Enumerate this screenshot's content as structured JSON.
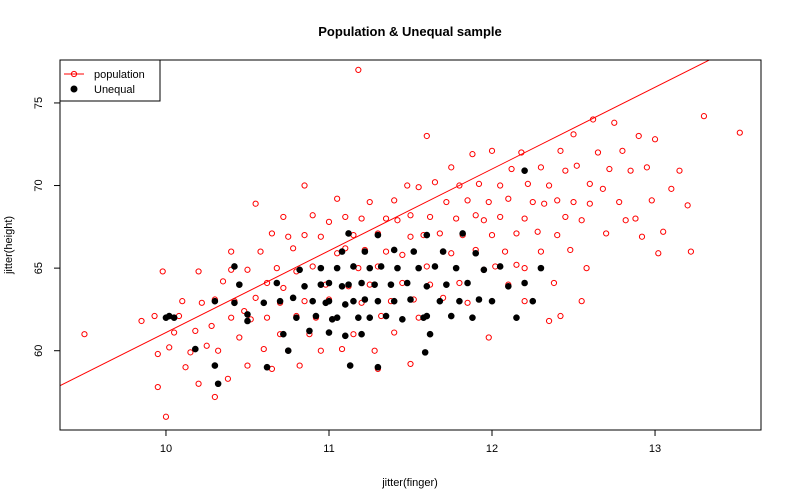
{
  "chart_data": {
    "type": "scatter",
    "title": "Population & Unequal sample",
    "xlabel": "jitter(finger)",
    "ylabel": "jitter(height)",
    "xlim": [
      9.35,
      13.65
    ],
    "ylim": [
      55.2,
      77.6
    ],
    "x_ticks": [
      10,
      11,
      12,
      13
    ],
    "y_ticks": [
      60,
      65,
      70,
      75
    ],
    "legend_position": "top-left",
    "colors": {
      "population": "#ff0000",
      "sample": "#000000",
      "regression": "#ff0000"
    },
    "series": [
      {
        "name": "population",
        "marker": "open-circle",
        "points": [
          [
            9.5,
            61
          ],
          [
            9.85,
            61.8
          ],
          [
            9.93,
            62.1
          ],
          [
            9.95,
            57.8
          ],
          [
            9.95,
            59.8
          ],
          [
            9.98,
            64.8
          ],
          [
            10.0,
            56
          ],
          [
            10.02,
            60.2
          ],
          [
            10.05,
            61.1
          ],
          [
            10.08,
            62.1
          ],
          [
            10.1,
            63
          ],
          [
            10.12,
            59
          ],
          [
            10.15,
            59.9
          ],
          [
            10.18,
            61.2
          ],
          [
            10.2,
            64.8
          ],
          [
            10.2,
            58
          ],
          [
            10.22,
            62.9
          ],
          [
            10.25,
            60.3
          ],
          [
            10.28,
            61.5
          ],
          [
            10.3,
            57.2
          ],
          [
            10.3,
            63.1
          ],
          [
            10.32,
            60
          ],
          [
            10.35,
            64.2
          ],
          [
            10.38,
            58.3
          ],
          [
            10.4,
            66
          ],
          [
            10.4,
            62
          ],
          [
            10.42,
            63
          ],
          [
            10.45,
            60.8
          ],
          [
            10.48,
            62.4
          ],
          [
            10.5,
            64.9
          ],
          [
            10.5,
            59.1
          ],
          [
            10.52,
            61.9
          ],
          [
            10.55,
            68.9
          ],
          [
            10.55,
            63.2
          ],
          [
            10.58,
            66
          ],
          [
            10.6,
            60.1
          ],
          [
            10.62,
            64.1
          ],
          [
            10.62,
            62
          ],
          [
            10.65,
            67.1
          ],
          [
            10.65,
            58.9
          ],
          [
            10.68,
            65
          ],
          [
            10.7,
            62.9
          ],
          [
            10.7,
            61
          ],
          [
            10.72,
            68.1
          ],
          [
            10.72,
            63.8
          ],
          [
            10.75,
            60
          ],
          [
            10.78,
            66.2
          ],
          [
            10.8,
            64.8
          ],
          [
            10.8,
            62.1
          ],
          [
            10.82,
            59.1
          ],
          [
            10.85,
            67
          ],
          [
            10.85,
            63
          ],
          [
            10.88,
            61
          ],
          [
            10.9,
            68.2
          ],
          [
            10.9,
            65.1
          ],
          [
            10.92,
            62
          ],
          [
            10.95,
            66.9
          ],
          [
            10.95,
            60
          ],
          [
            10.98,
            64
          ],
          [
            11.0,
            67.8
          ],
          [
            11.0,
            63.1
          ],
          [
            11.02,
            61.9
          ],
          [
            11.05,
            69.2
          ],
          [
            11.05,
            65.9
          ],
          [
            11.08,
            60.1
          ],
          [
            11.1,
            68.1
          ],
          [
            11.1,
            66.2
          ],
          [
            11.12,
            63.9
          ],
          [
            11.15,
            67
          ],
          [
            11.15,
            61
          ],
          [
            11.18,
            77
          ],
          [
            11.18,
            65
          ],
          [
            11.2,
            68
          ],
          [
            11.2,
            62.9
          ],
          [
            11.22,
            66.1
          ],
          [
            11.25,
            69
          ],
          [
            11.25,
            64
          ],
          [
            11.28,
            60
          ],
          [
            11.3,
            67.1
          ],
          [
            11.3,
            65.1
          ],
          [
            11.32,
            62.1
          ],
          [
            11.35,
            68
          ],
          [
            11.35,
            66
          ],
          [
            11.38,
            63
          ],
          [
            11.4,
            69.1
          ],
          [
            11.4,
            61.1
          ],
          [
            11.42,
            67.9
          ],
          [
            11.45,
            65.8
          ],
          [
            11.45,
            64.1
          ],
          [
            11.48,
            70
          ],
          [
            11.5,
            68.2
          ],
          [
            11.5,
            66.9
          ],
          [
            11.52,
            63.1
          ],
          [
            11.55,
            69.9
          ],
          [
            11.55,
            62
          ],
          [
            11.58,
            67
          ],
          [
            11.6,
            73
          ],
          [
            11.6,
            65.1
          ],
          [
            11.62,
            68.1
          ],
          [
            11.62,
            64
          ],
          [
            11.65,
            70.2
          ],
          [
            11.68,
            67.1
          ],
          [
            11.7,
            66
          ],
          [
            11.7,
            63.2
          ],
          [
            11.72,
            69
          ],
          [
            11.75,
            71.1
          ],
          [
            11.75,
            65.9
          ],
          [
            11.78,
            68
          ],
          [
            11.8,
            70
          ],
          [
            11.8,
            64.1
          ],
          [
            11.82,
            67
          ],
          [
            11.85,
            69.1
          ],
          [
            11.85,
            62.9
          ],
          [
            11.88,
            71.9
          ],
          [
            11.9,
            68.2
          ],
          [
            11.9,
            66.1
          ],
          [
            11.92,
            70.1
          ],
          [
            11.95,
            67.9
          ],
          [
            11.95,
            64.9
          ],
          [
            11.98,
            69
          ],
          [
            12.0,
            72.1
          ],
          [
            12.0,
            67
          ],
          [
            12.02,
            65.1
          ],
          [
            12.05,
            70
          ],
          [
            12.05,
            68.1
          ],
          [
            12.08,
            66
          ],
          [
            12.1,
            69.2
          ],
          [
            12.1,
            64
          ],
          [
            12.12,
            71
          ],
          [
            12.15,
            67.1
          ],
          [
            12.18,
            72
          ],
          [
            12.2,
            68
          ],
          [
            12.2,
            65
          ],
          [
            12.22,
            70.1
          ],
          [
            12.25,
            69
          ],
          [
            12.28,
            67.2
          ],
          [
            12.3,
            71.1
          ],
          [
            12.3,
            66
          ],
          [
            12.32,
            68.9
          ],
          [
            12.35,
            70
          ],
          [
            12.38,
            64.1
          ],
          [
            12.4,
            69.1
          ],
          [
            12.4,
            67
          ],
          [
            12.42,
            72.1
          ],
          [
            12.45,
            70.9
          ],
          [
            12.45,
            68.1
          ],
          [
            12.48,
            66.1
          ],
          [
            12.5,
            73.1
          ],
          [
            12.5,
            69
          ],
          [
            12.52,
            71.2
          ],
          [
            12.55,
            67.9
          ],
          [
            12.58,
            65
          ],
          [
            12.6,
            70.1
          ],
          [
            12.6,
            68.9
          ],
          [
            12.62,
            74
          ],
          [
            12.65,
            72
          ],
          [
            12.68,
            69.8
          ],
          [
            12.7,
            67.1
          ],
          [
            12.72,
            71
          ],
          [
            12.75,
            73.8
          ],
          [
            12.78,
            69
          ],
          [
            12.8,
            72.1
          ],
          [
            12.82,
            67.9
          ],
          [
            12.85,
            70.9
          ],
          [
            12.88,
            68
          ],
          [
            12.9,
            73
          ],
          [
            12.92,
            66.9
          ],
          [
            12.95,
            71.1
          ],
          [
            12.98,
            69.1
          ],
          [
            13.0,
            72.8
          ],
          [
            13.02,
            65.9
          ],
          [
            13.05,
            67.2
          ],
          [
            13.1,
            69.8
          ],
          [
            13.15,
            70.9
          ],
          [
            13.2,
            68.8
          ],
          [
            13.22,
            66
          ],
          [
            13.3,
            74.2
          ],
          [
            13.52,
            73.2
          ],
          [
            12.42,
            62.1
          ],
          [
            12.35,
            61.8
          ],
          [
            12.55,
            63
          ],
          [
            12.2,
            63
          ],
          [
            11.98,
            60.8
          ],
          [
            12.15,
            65.2
          ],
          [
            10.85,
            70
          ],
          [
            10.75,
            66.9
          ],
          [
            10.4,
            64.9
          ],
          [
            11.5,
            59.2
          ],
          [
            11.3,
            58.9
          ]
        ]
      },
      {
        "name": "Unequal",
        "marker": "filled-circle",
        "points": [
          [
            10.0,
            62
          ],
          [
            10.02,
            62.1
          ],
          [
            10.05,
            62
          ],
          [
            10.18,
            60.1
          ],
          [
            10.3,
            63
          ],
          [
            10.3,
            59.1
          ],
          [
            10.32,
            58
          ],
          [
            10.42,
            65.1
          ],
          [
            10.42,
            62.9
          ],
          [
            10.45,
            64
          ],
          [
            10.5,
            61.8
          ],
          [
            10.6,
            62.9
          ],
          [
            10.62,
            59
          ],
          [
            10.68,
            64.1
          ],
          [
            10.7,
            63
          ],
          [
            10.72,
            61
          ],
          [
            10.75,
            60
          ],
          [
            10.78,
            63.2
          ],
          [
            10.8,
            62
          ],
          [
            10.82,
            64.9
          ],
          [
            10.85,
            63.9
          ],
          [
            10.88,
            61.2
          ],
          [
            10.9,
            63
          ],
          [
            10.92,
            62.1
          ],
          [
            10.95,
            65
          ],
          [
            10.95,
            64
          ],
          [
            10.98,
            62.9
          ],
          [
            11.0,
            64.1
          ],
          [
            11.0,
            63
          ],
          [
            11.02,
            61.9
          ],
          [
            11.05,
            65
          ],
          [
            11.05,
            62
          ],
          [
            11.08,
            66
          ],
          [
            11.08,
            63.9
          ],
          [
            11.1,
            62.8
          ],
          [
            11.1,
            60.9
          ],
          [
            11.12,
            64
          ],
          [
            11.12,
            67.1
          ],
          [
            11.15,
            65.1
          ],
          [
            11.15,
            63
          ],
          [
            11.18,
            62
          ],
          [
            11.2,
            61
          ],
          [
            11.2,
            64.1
          ],
          [
            11.22,
            66
          ],
          [
            11.22,
            63.1
          ],
          [
            11.25,
            65
          ],
          [
            11.25,
            62
          ],
          [
            11.28,
            64
          ],
          [
            11.3,
            67
          ],
          [
            11.3,
            63
          ],
          [
            11.32,
            65.1
          ],
          [
            11.35,
            62.1
          ],
          [
            11.38,
            64
          ],
          [
            11.4,
            66.1
          ],
          [
            11.4,
            63
          ],
          [
            11.42,
            65
          ],
          [
            11.45,
            61.9
          ],
          [
            11.48,
            64.1
          ],
          [
            11.5,
            63.1
          ],
          [
            11.52,
            66
          ],
          [
            11.55,
            65
          ],
          [
            11.58,
            62
          ],
          [
            11.6,
            67
          ],
          [
            11.6,
            63.9
          ],
          [
            11.62,
            61
          ],
          [
            11.65,
            65.1
          ],
          [
            11.68,
            63
          ],
          [
            11.7,
            66
          ],
          [
            11.72,
            64
          ],
          [
            11.75,
            62.1
          ],
          [
            11.78,
            65
          ],
          [
            11.8,
            63
          ],
          [
            11.82,
            67.1
          ],
          [
            11.85,
            64.1
          ],
          [
            11.88,
            62
          ],
          [
            11.9,
            65.9
          ],
          [
            11.92,
            63.1
          ],
          [
            11.95,
            64.9
          ],
          [
            12.0,
            63
          ],
          [
            12.05,
            65.1
          ],
          [
            12.1,
            63.9
          ],
          [
            12.15,
            62
          ],
          [
            12.2,
            70.9
          ],
          [
            12.2,
            64.1
          ],
          [
            12.25,
            63
          ],
          [
            12.3,
            65
          ],
          [
            11.3,
            59
          ],
          [
            11.13,
            59.1
          ],
          [
            11.6,
            62.1
          ],
          [
            11.59,
            59.9
          ],
          [
            10.5,
            62.2
          ],
          [
            11.0,
            61.1
          ]
        ]
      }
    ],
    "regression_line": {
      "intercept": 11.6,
      "slope": 4.95
    }
  }
}
